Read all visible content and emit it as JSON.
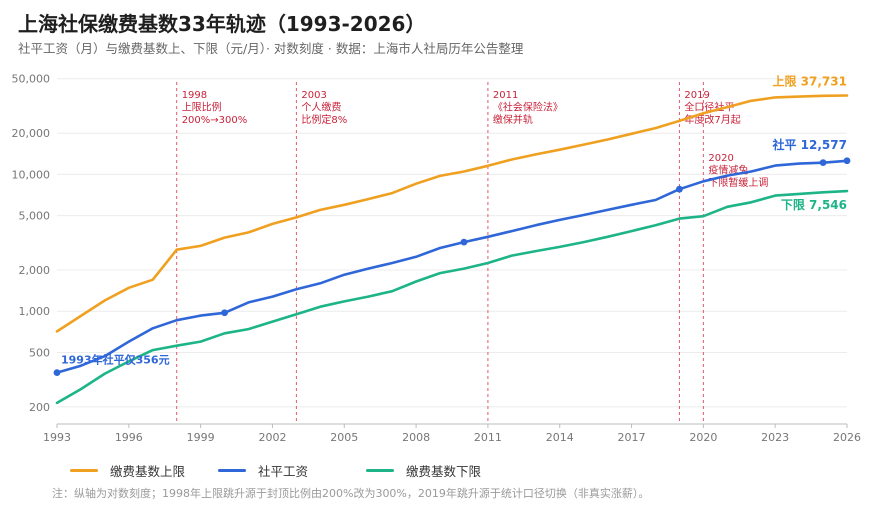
{
  "header": {
    "title": "上海社保缴费基数33年轨迹（1993-2026）",
    "subtitle": "社平工资（月）与缴费基数上、下限（元/月）· 对数刻度 · 数据：上海市人社局历年公告整理"
  },
  "legend": [
    {
      "label": "缴费基数上限",
      "color": "#f0a020"
    },
    {
      "label": "社平工资",
      "color": "#2f67d8"
    },
    {
      "label": "缴费基数下限",
      "color": "#1db487"
    }
  ],
  "footnote": "注：纵轴为对数刻度；1998年上限跳升源于封顶比例由200%改为300%，2019年跳升源于统计口径切换（非真实涨薪）。",
  "chart_data": {
    "type": "line",
    "yscale": "log",
    "ylim": [
      150,
      56000
    ],
    "xlim": [
      1993,
      2026
    ],
    "x_ticks": [
      1993,
      1996,
      1999,
      2002,
      2005,
      2008,
      2011,
      2014,
      2017,
      2020,
      2023,
      2026
    ],
    "y_ticks": [
      {
        "value": 200,
        "label": "200"
      },
      {
        "value": 500,
        "label": "500"
      },
      {
        "value": 1000,
        "label": "1,000"
      },
      {
        "value": 2000,
        "label": "2,000"
      },
      {
        "value": 5000,
        "label": "5,000"
      },
      {
        "value": 10000,
        "label": "10,000"
      },
      {
        "value": 20000,
        "label": "20,000"
      },
      {
        "value": 50000,
        "label": "50,000"
      }
    ],
    "x": [
      1993,
      1994,
      1995,
      1996,
      1997,
      1998,
      1999,
      2000,
      2001,
      2002,
      2003,
      2004,
      2005,
      2006,
      2007,
      2008,
      2009,
      2010,
      2011,
      2012,
      2013,
      2014,
      2015,
      2016,
      2017,
      2018,
      2019,
      2020,
      2021,
      2022,
      2023,
      2024,
      2025,
      2026
    ],
    "series": [
      {
        "name": "缴费基数上限",
        "color": "#f0a020",
        "end_label": "上限 37,731",
        "values": [
          712,
          925,
          1200,
          1484,
          1700,
          2817,
          3000,
          3450,
          3770,
          4350,
          4850,
          5500,
          6000,
          6600,
          7300,
          8550,
          9750,
          10500,
          11550,
          12850,
          14000,
          15150,
          16500,
          18000,
          19800,
          21800,
          24600,
          28000,
          31000,
          34500,
          36500,
          37000,
          37500,
          37731
        ]
      },
      {
        "name": "社平工资",
        "color": "#2f67d8",
        "end_label": "社平 12,577",
        "values": [
          356,
          400,
          470,
          600,
          750,
          860,
          930,
          975,
          1160,
          1280,
          1450,
          1600,
          1850,
          2050,
          2250,
          2500,
          2900,
          3200,
          3500,
          3850,
          4250,
          4650,
          5050,
          5500,
          6000,
          6500,
          7800,
          8900,
          9800,
          10500,
          11600,
          12000,
          12183,
          12577
        ],
        "markers": [
          1993,
          2000,
          2010,
          2019,
          2025,
          2026
        ]
      },
      {
        "name": "缴费基数下限",
        "color": "#1db487",
        "end_label": "下限 7,546",
        "values": [
          214,
          270,
          350,
          430,
          520,
          560,
          600,
          690,
          740,
          840,
          950,
          1080,
          1180,
          1280,
          1400,
          1650,
          1900,
          2050,
          2250,
          2550,
          2750,
          2950,
          3200,
          3500,
          3850,
          4250,
          4750,
          4950,
          5800,
          6250,
          7000,
          7200,
          7400,
          7546
        ]
      }
    ],
    "annotations": [
      {
        "x": 1998,
        "lines": [
          "1998",
          "上限比例",
          "200%→300%"
        ],
        "line_to": 2.5
      },
      {
        "x": 2003,
        "lines": [
          "2003",
          "个人缴费",
          "比例定8%"
        ],
        "line_to": 2.5
      },
      {
        "x": 2011,
        "lines": [
          "2011",
          "《社会保险法》",
          "缴保并轨"
        ],
        "line_to": 2.5
      },
      {
        "x": 2019,
        "lines": [
          "2019",
          "全口径社平",
          "年度改7月起"
        ],
        "line_to": 2.5
      },
      {
        "x": 2020,
        "lines": [
          "2020",
          "疫情减免",
          "下限暂缓上调"
        ],
        "line_to": 2.5
      }
    ],
    "callouts": [
      {
        "text": "1993年社平仅356元",
        "color": "#2f67d8"
      }
    ]
  }
}
